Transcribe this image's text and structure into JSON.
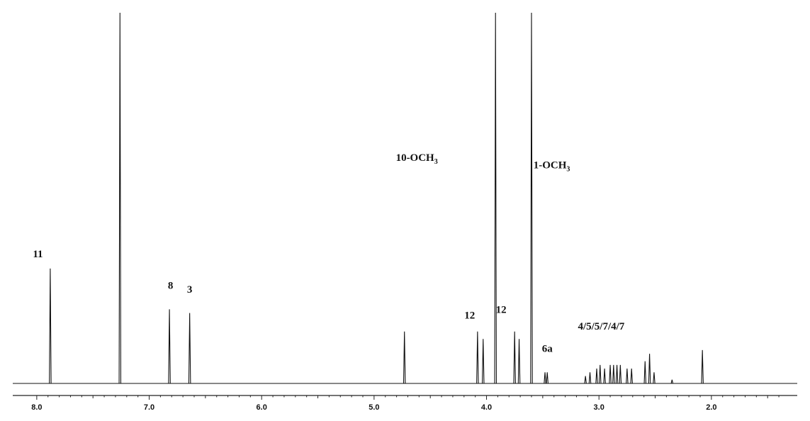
{
  "chart_data": {
    "type": "line",
    "title": "",
    "xlabel": "",
    "ylabel": "",
    "x_reversed": true,
    "x_range": [
      8.1,
      1.35
    ],
    "x_ticks": [
      "8.0",
      "7.0",
      "6.0",
      "5.0",
      "4.0",
      "3.0",
      "2.0"
    ],
    "tick_values": [
      8.0,
      7.0,
      6.0,
      5.0,
      4.0,
      3.0,
      2.0
    ],
    "y_range": [
      0,
      1
    ],
    "grid": false,
    "series": [
      {
        "peaks": [
          {
            "ppm": 7.88,
            "h": 0.31
          },
          {
            "ppm": 7.26,
            "h": 1.0
          },
          {
            "ppm": 6.82,
            "h": 0.2
          },
          {
            "ppm": 6.64,
            "h": 0.19
          },
          {
            "ppm": 4.73,
            "h": 0.14
          },
          {
            "ppm": 4.08,
            "h": 0.14
          },
          {
            "ppm": 4.03,
            "h": 0.12
          },
          {
            "ppm": 3.92,
            "h": 1.0
          },
          {
            "ppm": 3.75,
            "h": 0.14
          },
          {
            "ppm": 3.71,
            "h": 0.12
          },
          {
            "ppm": 3.6,
            "h": 1.0
          },
          {
            "ppm": 3.48,
            "h": 0.03
          },
          {
            "ppm": 3.46,
            "h": 0.03
          },
          {
            "ppm": 3.12,
            "h": 0.02
          },
          {
            "ppm": 3.08,
            "h": 0.03
          },
          {
            "ppm": 3.02,
            "h": 0.04
          },
          {
            "ppm": 2.99,
            "h": 0.05
          },
          {
            "ppm": 2.95,
            "h": 0.04
          },
          {
            "ppm": 2.9,
            "h": 0.05
          },
          {
            "ppm": 2.87,
            "h": 0.05
          },
          {
            "ppm": 2.84,
            "h": 0.05
          },
          {
            "ppm": 2.81,
            "h": 0.05
          },
          {
            "ppm": 2.75,
            "h": 0.04
          },
          {
            "ppm": 2.71,
            "h": 0.04
          },
          {
            "ppm": 2.59,
            "h": 0.06
          },
          {
            "ppm": 2.55,
            "h": 0.08
          },
          {
            "ppm": 2.51,
            "h": 0.03
          },
          {
            "ppm": 2.35,
            "h": 0.01
          },
          {
            "ppm": 2.08,
            "h": 0.09
          }
        ]
      }
    ],
    "annotations": [
      {
        "text": "11",
        "ppm": 7.99,
        "level": 0.34
      },
      {
        "text": "8",
        "ppm": 6.81,
        "level": 0.255
      },
      {
        "text": "3",
        "ppm": 6.64,
        "level": 0.245
      },
      {
        "text": "12",
        "ppm": 4.15,
        "level": 0.175
      },
      {
        "text": "12",
        "ppm": 3.87,
        "level": 0.19
      },
      {
        "text": "10-OCH",
        "sub": "3",
        "ppm": 4.62,
        "level": 0.6
      },
      {
        "text": "1-OCH",
        "sub": "3",
        "ppm": 3.42,
        "level": 0.58
      },
      {
        "text": "6a",
        "ppm": 3.46,
        "level": 0.085
      },
      {
        "text": "4/5/5/7/4/7",
        "ppm": 2.98,
        "level": 0.145
      }
    ]
  }
}
